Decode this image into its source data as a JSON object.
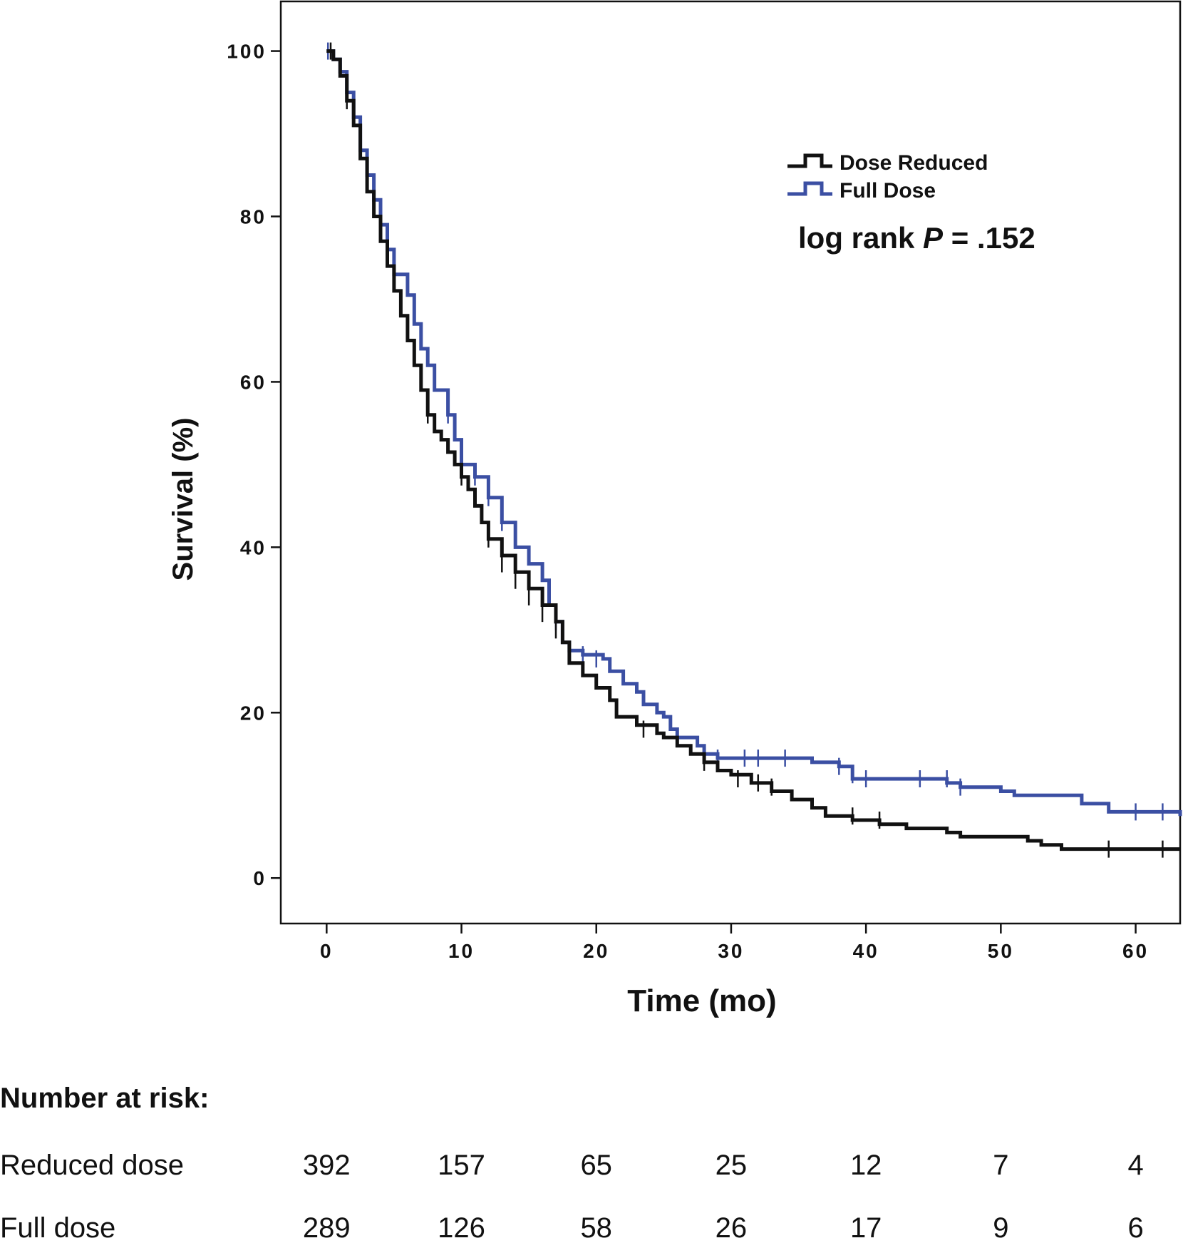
{
  "chart_data": {
    "type": "line",
    "subtype": "kaplan-meier step",
    "title": "",
    "xlabel": "Time (mo)",
    "ylabel": "Survival (%)",
    "xlim": [
      -3.4,
      63.3
    ],
    "ylim": [
      -5.5,
      106
    ],
    "xticks": [
      0,
      10,
      20,
      30,
      40,
      50,
      60
    ],
    "yticks": [
      0,
      20,
      40,
      60,
      80,
      100
    ],
    "xtick_labels": [
      "0",
      "10",
      "20",
      "30",
      "40",
      "50",
      "60"
    ],
    "ytick_labels": [
      "0",
      "20",
      "40",
      "60",
      "80",
      "100"
    ],
    "grid": false,
    "legend_position": "top-right",
    "annotation": {
      "prefix": "log rank ",
      "italic": "P",
      "suffix": " = .152"
    },
    "series": [
      {
        "name": "Dose Reduced",
        "color": "#111111",
        "points": [
          [
            0,
            100
          ],
          [
            0.5,
            99
          ],
          [
            1,
            97
          ],
          [
            1.5,
            94
          ],
          [
            2,
            91
          ],
          [
            2.5,
            87
          ],
          [
            3,
            83
          ],
          [
            3.5,
            80
          ],
          [
            4,
            77
          ],
          [
            4.5,
            74
          ],
          [
            5,
            71
          ],
          [
            5.5,
            68
          ],
          [
            6,
            65
          ],
          [
            6.5,
            62
          ],
          [
            7,
            59
          ],
          [
            7.5,
            56
          ],
          [
            8,
            54
          ],
          [
            8.5,
            53
          ],
          [
            9,
            51.5
          ],
          [
            9.5,
            50
          ],
          [
            10,
            48.5
          ],
          [
            10.5,
            47
          ],
          [
            11,
            45
          ],
          [
            11.5,
            43
          ],
          [
            12,
            41
          ],
          [
            13,
            39
          ],
          [
            14,
            37
          ],
          [
            15,
            35
          ],
          [
            16,
            33
          ],
          [
            17,
            31
          ],
          [
            17.5,
            28.5
          ],
          [
            18,
            26
          ],
          [
            19,
            24.5
          ],
          [
            20,
            23
          ],
          [
            21,
            21.5
          ],
          [
            21.5,
            19.5
          ],
          [
            23,
            18.5
          ],
          [
            24.5,
            17.5
          ],
          [
            25,
            17
          ],
          [
            26,
            16
          ],
          [
            27,
            15
          ],
          [
            28,
            14
          ],
          [
            29,
            13
          ],
          [
            30,
            12.5
          ],
          [
            31.5,
            11.5
          ],
          [
            33,
            10.5
          ],
          [
            34.5,
            9.5
          ],
          [
            36,
            8.5
          ],
          [
            37,
            7.5
          ],
          [
            39,
            7
          ],
          [
            41,
            6.5
          ],
          [
            43,
            6
          ],
          [
            46,
            5.5
          ],
          [
            47,
            5
          ],
          [
            52,
            4.5
          ],
          [
            53,
            4
          ],
          [
            54.5,
            3.5
          ],
          [
            63.3,
            3.5
          ]
        ],
        "censors": [
          [
            0.3,
            100
          ],
          [
            1.5,
            94
          ],
          [
            7.5,
            56
          ],
          [
            10,
            48.5
          ],
          [
            12,
            41
          ],
          [
            13,
            38
          ],
          [
            14,
            36
          ],
          [
            15,
            34
          ],
          [
            16,
            32
          ],
          [
            17,
            30
          ],
          [
            23.5,
            18
          ],
          [
            28,
            14
          ],
          [
            30.5,
            12
          ],
          [
            32,
            11.5
          ],
          [
            33,
            11
          ],
          [
            39,
            7.5
          ],
          [
            41,
            7
          ],
          [
            58,
            3.5
          ],
          [
            62,
            3.5
          ]
        ]
      },
      {
        "name": "Full Dose",
        "color": "#3b4fa3",
        "points": [
          [
            0,
            100
          ],
          [
            0.5,
            99
          ],
          [
            1,
            97.5
          ],
          [
            1.5,
            95
          ],
          [
            2,
            92
          ],
          [
            2.5,
            88
          ],
          [
            3,
            85
          ],
          [
            3.5,
            82
          ],
          [
            4,
            79
          ],
          [
            4.5,
            76
          ],
          [
            5,
            73
          ],
          [
            6,
            70.5
          ],
          [
            6.5,
            67
          ],
          [
            7,
            64
          ],
          [
            7.5,
            62
          ],
          [
            8,
            59
          ],
          [
            9,
            56
          ],
          [
            9.5,
            53
          ],
          [
            10,
            50
          ],
          [
            11,
            48.5
          ],
          [
            12,
            46
          ],
          [
            13,
            43
          ],
          [
            14,
            40
          ],
          [
            15,
            38
          ],
          [
            16,
            36
          ],
          [
            16.5,
            33
          ],
          [
            17,
            31
          ],
          [
            17.5,
            28.5
          ],
          [
            18,
            27.5
          ],
          [
            19,
            27
          ],
          [
            20.5,
            26.5
          ],
          [
            21,
            25
          ],
          [
            22,
            23.5
          ],
          [
            23,
            22.5
          ],
          [
            23.5,
            21
          ],
          [
            24.5,
            20
          ],
          [
            25,
            19.5
          ],
          [
            25.5,
            18
          ],
          [
            26,
            17
          ],
          [
            27.5,
            16
          ],
          [
            28,
            15
          ],
          [
            29,
            14.5
          ],
          [
            36,
            14
          ],
          [
            38,
            13.5
          ],
          [
            39,
            12
          ],
          [
            46,
            11.5
          ],
          [
            47,
            11
          ],
          [
            50,
            10.5
          ],
          [
            51,
            10
          ],
          [
            56,
            9
          ],
          [
            58,
            8
          ],
          [
            63.3,
            7.5
          ]
        ],
        "censors": [
          [
            0.1,
            100
          ],
          [
            9,
            56
          ],
          [
            10,
            50
          ],
          [
            11,
            48.5
          ],
          [
            12,
            46
          ],
          [
            13,
            43
          ],
          [
            17,
            31
          ],
          [
            19,
            27
          ],
          [
            20,
            26.5
          ],
          [
            29,
            14.5
          ],
          [
            31,
            14.5
          ],
          [
            32,
            14.5
          ],
          [
            34,
            14.5
          ],
          [
            38,
            13.5
          ],
          [
            39,
            12.5
          ],
          [
            40,
            12
          ],
          [
            44,
            12
          ],
          [
            46,
            12
          ],
          [
            47,
            11
          ],
          [
            60,
            8
          ],
          [
            62,
            8
          ]
        ]
      }
    ]
  },
  "risk_table": {
    "title": "Number at risk:",
    "columns": [
      0,
      10,
      20,
      30,
      40,
      50,
      60
    ],
    "rows": [
      {
        "label": "Reduced dose",
        "values": [
          "392",
          "157",
          "65",
          "25",
          "12",
          "7",
          "4"
        ]
      },
      {
        "label": "Full dose",
        "values": [
          "289",
          "126",
          "58",
          "26",
          "17",
          "9",
          "6"
        ]
      }
    ]
  }
}
